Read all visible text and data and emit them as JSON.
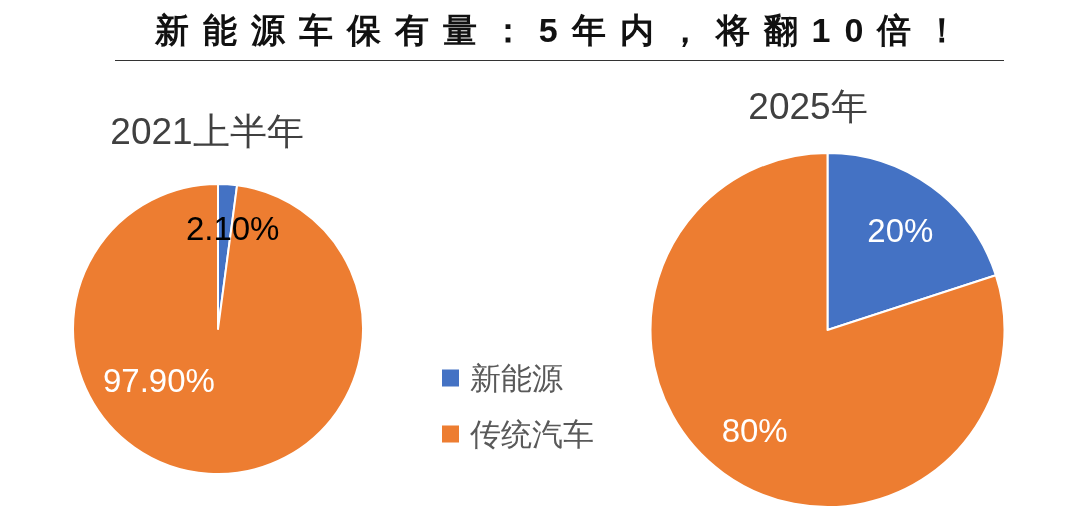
{
  "chart_data": [
    {
      "type": "other",
      "title": "新能源车保有量：5年内，将翻10倍！"
    },
    {
      "type": "pie",
      "title": "2021上半年",
      "categories": [
        "新能源",
        "传统汽车"
      ],
      "values": [
        2.1,
        97.9
      ],
      "colors": [
        "#4472c4",
        "#ed7d31"
      ],
      "value_labels": [
        "2.10%",
        "97.90%"
      ],
      "legend": "right"
    },
    {
      "type": "pie",
      "title": "2025年",
      "values": [
        20,
        80
      ],
      "colors": [
        "#4472c4",
        "#ed7d31"
      ],
      "value_labels": [
        "20%",
        "80%"
      ]
    }
  ]
}
